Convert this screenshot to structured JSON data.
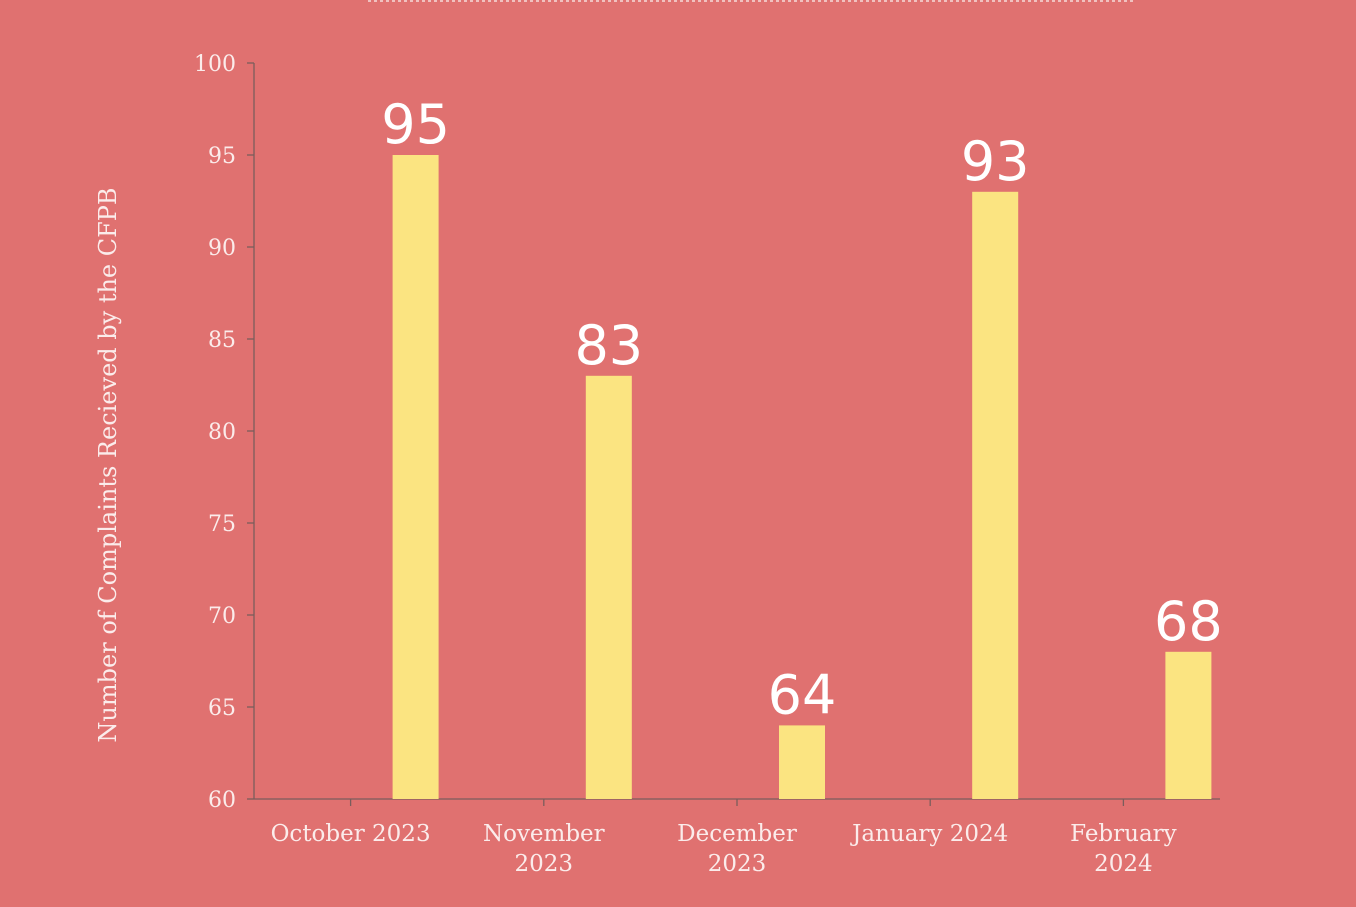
{
  "chart_data": {
    "type": "bar",
    "title": "",
    "xlabel": "",
    "ylabel": "Number of Complaints Recieved by the CFPB",
    "categories": [
      [
        "October 2023"
      ],
      [
        "November",
        "2023"
      ],
      [
        "December",
        "2023"
      ],
      [
        "January 2024"
      ],
      [
        "February",
        "2024"
      ]
    ],
    "values": [
      95,
      83,
      64,
      93,
      68
    ],
    "ylim": [
      60,
      100
    ],
    "yticks": [
      60,
      65,
      70,
      75,
      80,
      85,
      90,
      95,
      100
    ],
    "grid": false,
    "legend": "none",
    "colors": {
      "background": "#e07170",
      "bar": "#fbe481",
      "axis": "#7a5d5c",
      "text": "#fbeceb",
      "data_label": "#ffffff"
    }
  }
}
